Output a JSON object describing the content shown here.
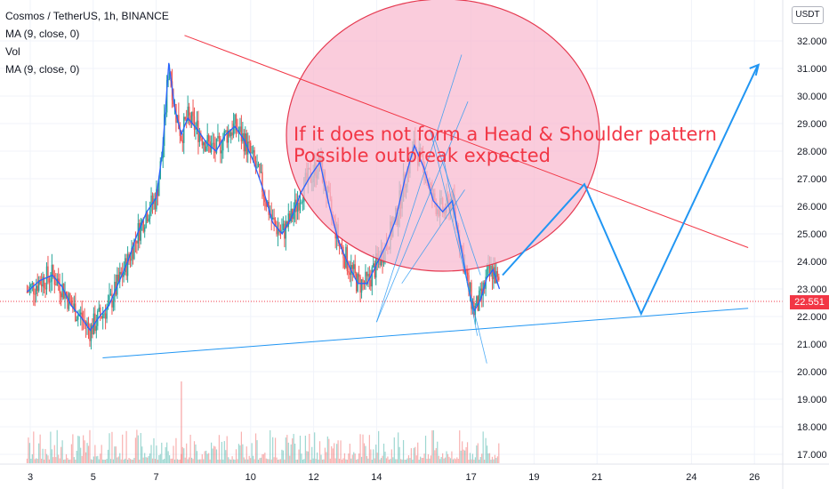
{
  "legend": {
    "symbol": "Cosmos / TetherUS, 1h, BINANCE",
    "ma1": "MA (9, close, 0)",
    "vol": "Vol",
    "ma2": "MA (9, close, 0)"
  },
  "price_axis": {
    "currency": "USDT",
    "last_price_label": "22.551"
  },
  "annotation": {
    "line1": "If it does not form a Head & Shoulder pattern",
    "line2": "Possible outbreak expected"
  },
  "colors": {
    "up": "#26a69a",
    "down": "#ef5350",
    "ma": "#2962ff",
    "trendline_red": "#f23645",
    "trendline_blue": "#2196f3",
    "ellipse_fill": "#f8bbd0"
  },
  "chart_data": {
    "type": "line",
    "title": "Cosmos / TetherUS, 1h, BINANCE",
    "xlabel": "",
    "ylabel": "",
    "ylim": [
      16.8,
      32.4
    ],
    "y_ticks": [
      "17.000",
      "18.000",
      "19.000",
      "20.000",
      "21.000",
      "22.000",
      "23.000",
      "24.000",
      "25.000",
      "26.000",
      "27.000",
      "28.000",
      "29.000",
      "30.000",
      "31.000",
      "32.000"
    ],
    "x_ticks": [
      "3",
      "5",
      "7",
      "10",
      "12",
      "14",
      "17",
      "19",
      "21",
      "24",
      "26"
    ],
    "last_price": 22.551,
    "series": [
      {
        "x": [
          2.9,
          3.3,
          3.7,
          4.0,
          4.3,
          4.6,
          4.9,
          5.2,
          5.5,
          5.8,
          6.1,
          6.4,
          6.7,
          7.0,
          7.2,
          7.4,
          7.6,
          7.8,
          8.0,
          8.3,
          8.6,
          8.9,
          9.2,
          9.5,
          9.8,
          10.1,
          10.4,
          10.7,
          11.0,
          11.3,
          11.6,
          11.9,
          12.2,
          12.5,
          12.8,
          13.1,
          13.4,
          13.7,
          14.0,
          14.3,
          14.6,
          14.9,
          15.2,
          15.5,
          15.8,
          16.1,
          16.4,
          16.7,
          16.9,
          17.1,
          17.3,
          17.5,
          17.7,
          17.9
        ],
        "values": [
          22.9,
          23.3,
          23.5,
          23.1,
          22.4,
          22.0,
          21.5,
          22.0,
          22.4,
          23.2,
          24.0,
          25.0,
          25.8,
          26.3,
          28.0,
          31.2,
          29.5,
          28.6,
          29.2,
          28.8,
          28.3,
          28.0,
          28.6,
          28.9,
          28.4,
          27.6,
          26.6,
          25.4,
          25.0,
          25.6,
          26.5,
          27.1,
          27.6,
          26.0,
          24.7,
          23.9,
          23.2,
          23.2,
          23.9,
          24.6,
          25.5,
          27.0,
          28.2,
          27.4,
          26.2,
          25.8,
          26.2,
          24.4,
          23.1,
          22.2,
          22.6,
          23.4,
          23.7,
          23.0
        ]
      }
    ],
    "trendlines": [
      {
        "color": "red",
        "x": [
          7.9,
          25.8
        ],
        "y": [
          32.2,
          24.5
        ]
      },
      {
        "color": "blue",
        "x": [
          5.3,
          25.8
        ],
        "y": [
          20.5,
          22.3
        ]
      }
    ],
    "projection": {
      "color": "blue",
      "x": [
        18.0,
        20.6,
        22.4,
        26.1
      ],
      "y": [
        23.5,
        26.8,
        22.1,
        31.1
      ]
    },
    "volume_ma": 17.4
  }
}
